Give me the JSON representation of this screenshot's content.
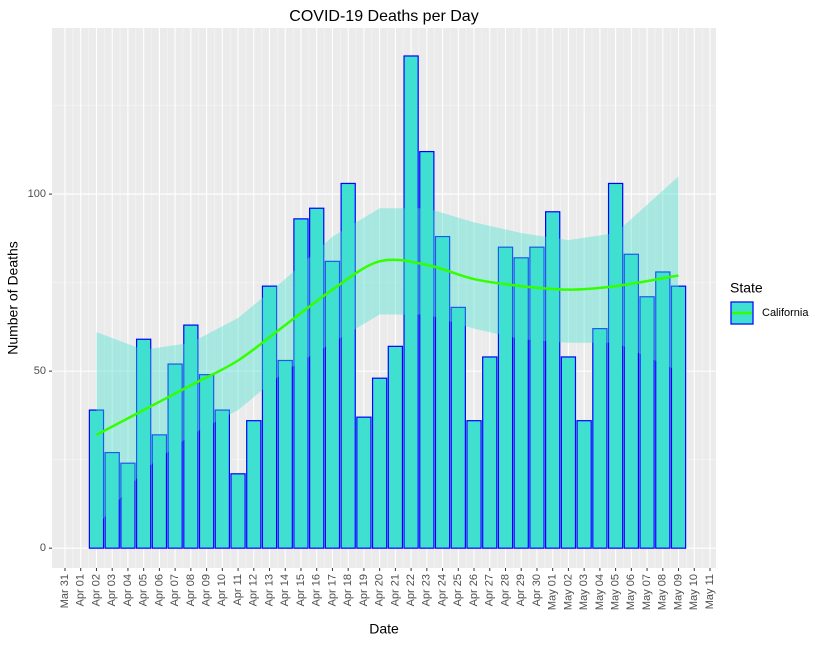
{
  "chart_data": {
    "type": "bar",
    "title": "COVID-19 Deaths per Day",
    "x_label": "Date",
    "y_label": "Number of Deaths",
    "x": [
      "Apr 02",
      "Apr 03",
      "Apr 04",
      "Apr 05",
      "Apr 06",
      "Apr 07",
      "Apr 08",
      "Apr 09",
      "Apr 10",
      "Apr 11",
      "Apr 12",
      "Apr 13",
      "Apr 14",
      "Apr 15",
      "Apr 16",
      "Apr 17",
      "Apr 18",
      "Apr 19",
      "Apr 20",
      "Apr 21",
      "Apr 22",
      "Apr 23",
      "Apr 24",
      "Apr 25",
      "Apr 26",
      "Apr 27",
      "Apr 28",
      "Apr 29",
      "Apr 30",
      "May 01",
      "May 02",
      "May 03",
      "May 04",
      "May 05",
      "May 06",
      "May 07",
      "May 08",
      "May 09"
    ],
    "series": [
      {
        "name": "California",
        "color": "#40e0d0",
        "edge_color": "#0000ff",
        "values": [
          39,
          27,
          24,
          59,
          32,
          52,
          63,
          49,
          39,
          21,
          36,
          74,
          53,
          93,
          96,
          81,
          103,
          37,
          48,
          57,
          139,
          112,
          88,
          68,
          36,
          54,
          85,
          82,
          85,
          95,
          54,
          36,
          62,
          103,
          83,
          71,
          78,
          74
        ]
      }
    ],
    "smooth": {
      "color": "#33ff00",
      "band_color": "#40e0d0",
      "x": [
        "Apr 02",
        "Apr 05",
        "Apr 08",
        "Apr 11",
        "Apr 14",
        "Apr 17",
        "Apr 20",
        "Apr 23",
        "Apr 26",
        "Apr 29",
        "May 02",
        "May 05",
        "May 09"
      ],
      "values": [
        32,
        39,
        46,
        53,
        63,
        73,
        81,
        80,
        76,
        74,
        73,
        74,
        77
      ],
      "upper": [
        61,
        56,
        58,
        65,
        76,
        88,
        96,
        96,
        92,
        89,
        87,
        89,
        105
      ],
      "lower": [
        6,
        22,
        32,
        39,
        50,
        58,
        66,
        66,
        62,
        59,
        58,
        58,
        50
      ]
    },
    "legend_title": "State",
    "legend": "right",
    "grid": true,
    "xticks": [
      "Mar 31",
      "Apr 01",
      "Apr 02",
      "Apr 03",
      "Apr 04",
      "Apr 05",
      "Apr 06",
      "Apr 07",
      "Apr 08",
      "Apr 09",
      "Apr 10",
      "Apr 11",
      "Apr 12",
      "Apr 13",
      "Apr 14",
      "Apr 15",
      "Apr 16",
      "Apr 17",
      "Apr 18",
      "Apr 19",
      "Apr 20",
      "Apr 21",
      "Apr 22",
      "Apr 23",
      "Apr 24",
      "Apr 25",
      "Apr 26",
      "Apr 27",
      "Apr 28",
      "Apr 29",
      "Apr 30",
      "May 01",
      "May 02",
      "May 03",
      "May 04",
      "May 05",
      "May 06",
      "May 07",
      "May 08",
      "May 09",
      "May 10",
      "May 11"
    ],
    "ylim": [
      -5.6,
      146.9
    ],
    "yticks": [
      0,
      50,
      100
    ]
  }
}
